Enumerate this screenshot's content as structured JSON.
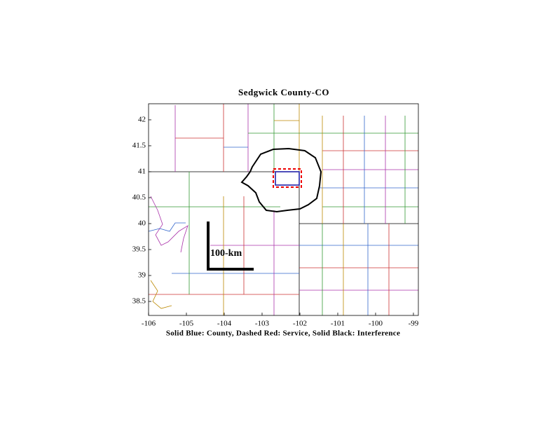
{
  "chart_data": {
    "type": "map",
    "title": "Sedgwick County-CO",
    "xlabel": "Solid Blue: County, Dashed Red: Service, Solid Black: Interference",
    "annotation": "100-km",
    "xlim": [
      -106,
      -98.87
    ],
    "ylim": [
      38.23,
      42.31
    ],
    "xticks": [
      -106,
      -105,
      -104,
      -103,
      -102,
      -101,
      -100,
      -99
    ],
    "yticks": [
      38.5,
      39,
      39.5,
      40,
      40.5,
      41,
      41.5,
      42
    ]
  }
}
